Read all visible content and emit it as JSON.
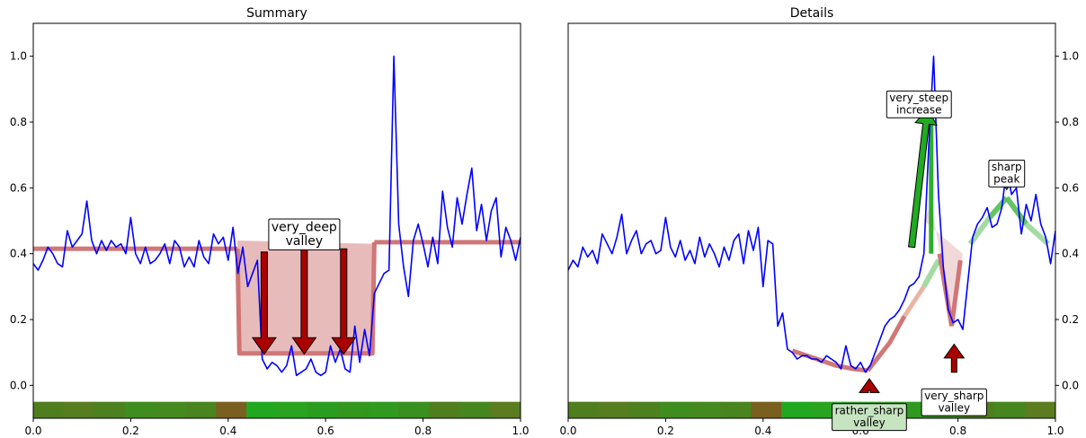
{
  "chart_data": [
    {
      "type": "line",
      "title": "Summary",
      "xlabel": "",
      "ylabel": "",
      "xlim": [
        0,
        1
      ],
      "ylim": [
        -0.1,
        1.1
      ],
      "xticks": [
        "0.0",
        "0.2",
        "0.4",
        "0.6",
        "0.8",
        "1.0"
      ],
      "yticks": [
        "0.0",
        "0.2",
        "0.4",
        "0.6",
        "0.8",
        "1.0"
      ],
      "grid": false,
      "series": [
        {
          "color": "#0000ff",
          "x": [
            0.0,
            0.01,
            0.02,
            0.03,
            0.04,
            0.05,
            0.06,
            0.07,
            0.08,
            0.09,
            0.1,
            0.11,
            0.12,
            0.13,
            0.14,
            0.15,
            0.16,
            0.17,
            0.18,
            0.19,
            0.2,
            0.21,
            0.22,
            0.23,
            0.24,
            0.25,
            0.26,
            0.27,
            0.28,
            0.29,
            0.3,
            0.31,
            0.32,
            0.33,
            0.34,
            0.35,
            0.36,
            0.37,
            0.38,
            0.39,
            0.4,
            0.41,
            0.42,
            0.43,
            0.44,
            0.45,
            0.46,
            0.47,
            0.48,
            0.49,
            0.5,
            0.51,
            0.52,
            0.53,
            0.54,
            0.55,
            0.56,
            0.57,
            0.58,
            0.59,
            0.6,
            0.61,
            0.62,
            0.63,
            0.64,
            0.65,
            0.66,
            0.67,
            0.68,
            0.69,
            0.7,
            0.71,
            0.72,
            0.73,
            0.74,
            0.75,
            0.76,
            0.77,
            0.78,
            0.79,
            0.8,
            0.81,
            0.82,
            0.83,
            0.84,
            0.85,
            0.86,
            0.87,
            0.88,
            0.89,
            0.9,
            0.91,
            0.92,
            0.93,
            0.94,
            0.95,
            0.96,
            0.97,
            0.98,
            0.99,
            1.0
          ],
          "y": [
            0.37,
            0.35,
            0.38,
            0.42,
            0.4,
            0.37,
            0.36,
            0.47,
            0.42,
            0.44,
            0.46,
            0.56,
            0.44,
            0.4,
            0.44,
            0.41,
            0.44,
            0.42,
            0.43,
            0.4,
            0.51,
            0.4,
            0.37,
            0.42,
            0.37,
            0.38,
            0.4,
            0.43,
            0.37,
            0.44,
            0.42,
            0.36,
            0.39,
            0.36,
            0.44,
            0.39,
            0.37,
            0.46,
            0.43,
            0.45,
            0.38,
            0.48,
            0.34,
            0.42,
            0.3,
            0.34,
            0.38,
            0.08,
            0.05,
            0.07,
            0.06,
            0.04,
            0.06,
            0.12,
            0.03,
            0.04,
            0.05,
            0.08,
            0.04,
            0.03,
            0.04,
            0.12,
            0.07,
            0.11,
            0.05,
            0.04,
            0.18,
            0.07,
            0.17,
            0.09,
            0.28,
            0.31,
            0.34,
            0.35,
            1.0,
            0.49,
            0.36,
            0.27,
            0.44,
            0.49,
            0.43,
            0.36,
            0.45,
            0.37,
            0.59,
            0.48,
            0.42,
            0.57,
            0.49,
            0.58,
            0.66,
            0.47,
            0.55,
            0.44,
            0.53,
            0.57,
            0.39,
            0.48,
            0.44,
            0.38,
            0.45
          ]
        }
      ],
      "fills": [
        {
          "xs": [
            0.419,
            0.419,
            0.696,
            0.696
          ],
          "ys": [
            0.44,
            0.1,
            0.1,
            0.43
          ],
          "color": "#d27878"
        }
      ],
      "segments": [
        {
          "x": [
            0.0,
            0.419
          ],
          "y": [
            0.415,
            0.415
          ],
          "color": "#cd7070",
          "width": 5
        },
        {
          "x": [
            0.419,
            0.423,
            0.696,
            0.7
          ],
          "y": [
            0.415,
            0.097,
            0.097,
            0.435
          ],
          "color": "#cd7070",
          "width": 5
        },
        {
          "x": [
            0.7,
            1.0
          ],
          "y": [
            0.435,
            0.435
          ],
          "color": "#cd7070",
          "width": 5
        }
      ],
      "arrows": [
        {
          "x0": 0.474,
          "y0": 0.405,
          "x1": 0.474,
          "y1": 0.095,
          "color": "#aa0000",
          "width": 7,
          "head": 13
        },
        {
          "x0": 0.556,
          "y0": 0.415,
          "x1": 0.556,
          "y1": 0.095,
          "color": "#aa0000",
          "width": 7,
          "head": 13
        },
        {
          "x0": 0.637,
          "y0": 0.415,
          "x1": 0.637,
          "y1": 0.095,
          "color": "#aa0000",
          "width": 7,
          "head": 13
        }
      ],
      "annotations": [
        {
          "lines": [
            "very_deep",
            "valley"
          ],
          "x": 0.556,
          "y": 0.46,
          "size": 14,
          "bg": "#ffffff"
        }
      ],
      "bottom_band": {
        "y0": -0.1,
        "y1": -0.05,
        "edges": [
          0.0,
          0.0625,
          0.125,
          0.1875,
          0.25,
          0.3125,
          0.375,
          0.4375,
          0.5,
          0.5625,
          0.625,
          0.6875,
          0.75,
          0.8125,
          0.875,
          0.9375,
          1.0
        ],
        "colors": [
          "#4f7e1e",
          "#567d1f",
          "#4d801e",
          "#3f8c1f",
          "#448a1f",
          "#4a841e",
          "#7a601f",
          "#22a721",
          "#2aa321",
          "#2a9d20",
          "#32961f",
          "#2f9920",
          "#3a901e",
          "#4f7e1e",
          "#46861f",
          "#5b7c1f"
        ]
      }
    },
    {
      "type": "line",
      "title": "Details",
      "xlabel": "",
      "ylabel": "",
      "xlim": [
        0,
        1
      ],
      "ylim": [
        -0.1,
        1.1
      ],
      "xticks": [
        "0.0",
        "0.2",
        "0.4",
        "0.6",
        "0.8",
        "1.0"
      ],
      "yticks": [
        "0.0",
        "0.2",
        "0.4",
        "0.6",
        "0.8",
        "1.0"
      ],
      "y_axis_side": "right",
      "grid": false,
      "series": [
        {
          "color": "#0000ff",
          "x": [
            0.0,
            0.01,
            0.02,
            0.03,
            0.04,
            0.05,
            0.06,
            0.07,
            0.08,
            0.09,
            0.1,
            0.11,
            0.12,
            0.13,
            0.14,
            0.15,
            0.16,
            0.17,
            0.18,
            0.19,
            0.2,
            0.21,
            0.22,
            0.23,
            0.24,
            0.25,
            0.26,
            0.27,
            0.28,
            0.29,
            0.3,
            0.31,
            0.32,
            0.33,
            0.34,
            0.35,
            0.36,
            0.37,
            0.38,
            0.39,
            0.4,
            0.41,
            0.42,
            0.43,
            0.44,
            0.45,
            0.46,
            0.47,
            0.48,
            0.49,
            0.5,
            0.51,
            0.52,
            0.53,
            0.54,
            0.55,
            0.56,
            0.57,
            0.58,
            0.59,
            0.6,
            0.61,
            0.62,
            0.63,
            0.64,
            0.65,
            0.66,
            0.67,
            0.68,
            0.69,
            0.7,
            0.71,
            0.72,
            0.73,
            0.74,
            0.75,
            0.76,
            0.77,
            0.78,
            0.79,
            0.8,
            0.81,
            0.82,
            0.83,
            0.84,
            0.85,
            0.86,
            0.87,
            0.88,
            0.89,
            0.9,
            0.91,
            0.92,
            0.93,
            0.94,
            0.95,
            0.96,
            0.97,
            0.98,
            0.99,
            1.0
          ],
          "y": [
            0.35,
            0.38,
            0.36,
            0.42,
            0.39,
            0.41,
            0.37,
            0.46,
            0.43,
            0.4,
            0.45,
            0.52,
            0.4,
            0.44,
            0.47,
            0.4,
            0.43,
            0.44,
            0.4,
            0.41,
            0.51,
            0.42,
            0.39,
            0.44,
            0.38,
            0.41,
            0.37,
            0.45,
            0.39,
            0.43,
            0.4,
            0.36,
            0.42,
            0.38,
            0.44,
            0.46,
            0.37,
            0.47,
            0.41,
            0.48,
            0.3,
            0.44,
            0.43,
            0.18,
            0.22,
            0.11,
            0.1,
            0.08,
            0.09,
            0.09,
            0.08,
            0.08,
            0.07,
            0.09,
            0.08,
            0.07,
            0.05,
            0.12,
            0.06,
            0.05,
            0.07,
            0.04,
            0.06,
            0.1,
            0.14,
            0.18,
            0.2,
            0.21,
            0.23,
            0.26,
            0.3,
            0.31,
            0.33,
            0.4,
            0.73,
            1.0,
            0.58,
            0.36,
            0.23,
            0.19,
            0.2,
            0.17,
            0.31,
            0.45,
            0.49,
            0.51,
            0.54,
            0.48,
            0.49,
            0.54,
            0.66,
            0.58,
            0.6,
            0.46,
            0.55,
            0.5,
            0.58,
            0.49,
            0.45,
            0.37,
            0.47
          ]
        }
      ],
      "fills": [
        {
          "xs": [
            0.73,
            0.745,
            0.787,
            0.81
          ],
          "ys": [
            0.5,
            0.55,
            0.2,
            0.4
          ],
          "color": "#e6b4b4"
        }
      ],
      "segments": [
        {
          "x": [
            0.46,
            0.5,
            0.55,
            0.585,
            0.615
          ],
          "y": [
            0.105,
            0.085,
            0.06,
            0.05,
            0.045
          ],
          "color": "#cd7070",
          "width": 5
        },
        {
          "x": [
            0.615,
            0.66,
            0.69
          ],
          "y": [
            0.045,
            0.13,
            0.21
          ],
          "color": "#cd7070",
          "width": 5
        },
        {
          "x": [
            0.69,
            0.73
          ],
          "y": [
            0.21,
            0.3
          ],
          "color": "#e9b0a0",
          "width": 5
        },
        {
          "x": [
            0.73,
            0.76
          ],
          "y": [
            0.3,
            0.38
          ],
          "color": "#9ed99e",
          "width": 6
        },
        {
          "x": [
            0.745,
            0.745
          ],
          "y": [
            0.4,
            0.82
          ],
          "color": "#22aa22",
          "width": 5
        },
        {
          "x": [
            0.762,
            0.787
          ],
          "y": [
            0.4,
            0.18
          ],
          "color": "#cd7070",
          "width": 5
        },
        {
          "x": [
            0.787,
            0.805
          ],
          "y": [
            0.18,
            0.38
          ],
          "color": "#cd7070",
          "width": 5
        },
        {
          "x": [
            0.825,
            0.865
          ],
          "y": [
            0.43,
            0.51
          ],
          "color": "#9ed99e",
          "width": 6
        },
        {
          "x": [
            0.865,
            0.9
          ],
          "y": [
            0.51,
            0.57
          ],
          "color": "#5cc05c",
          "width": 6
        },
        {
          "x": [
            0.9,
            0.94
          ],
          "y": [
            0.57,
            0.49
          ],
          "color": "#5cc05c",
          "width": 6
        },
        {
          "x": [
            0.94,
            0.985
          ],
          "y": [
            0.49,
            0.43
          ],
          "color": "#9ed99e",
          "width": 6
        }
      ],
      "arrows": [
        {
          "x0": 0.705,
          "y0": 0.42,
          "x1": 0.738,
          "y1": 0.84,
          "color": "#22aa22",
          "width": 7,
          "head": 12
        },
        {
          "x0": 0.792,
          "y0": 0.04,
          "x1": 0.792,
          "y1": 0.125,
          "color": "#aa0000",
          "width": 6,
          "head": 11
        },
        {
          "x0": 0.618,
          "y0": -0.015,
          "x1": 0.618,
          "y1": 0.02,
          "color": "#aa0000",
          "width": 2,
          "head": 11
        },
        {
          "x0": 0.9,
          "y0": 0.645,
          "x1": 0.9,
          "y1": 0.595,
          "color": "#22aa22",
          "width": 2,
          "head": 11
        }
      ],
      "annotations": [
        {
          "lines": [
            "very_steep",
            "increase"
          ],
          "x": 0.72,
          "y": 0.855,
          "size": 12,
          "bg": "#ffffff"
        },
        {
          "lines": [
            "sharp",
            "peak"
          ],
          "x": 0.9,
          "y": 0.645,
          "size": 12,
          "bg": "#ffffff"
        },
        {
          "lines": [
            "very_sharp",
            "valley"
          ],
          "x": 0.792,
          "y": -0.05,
          "size": 12,
          "bg": "#ffffff"
        },
        {
          "lines": [
            "rather_sharp",
            "valley"
          ],
          "x": 0.618,
          "y": -0.095,
          "size": 12,
          "bg": "#c6e4c0"
        }
      ],
      "bottom_band": {
        "y0": -0.1,
        "y1": -0.05,
        "edges": [
          0.0,
          0.0625,
          0.125,
          0.1875,
          0.25,
          0.3125,
          0.375,
          0.4375,
          0.5,
          0.5625,
          0.625,
          0.6875,
          0.75,
          0.8125,
          0.875,
          0.9375,
          1.0
        ],
        "colors": [
          "#4f7e1e",
          "#567d1f",
          "#4d801e",
          "#3f8c1f",
          "#448a1f",
          "#4a841e",
          "#7a601f",
          "#22a721",
          "#2aa321",
          "#2a9d20",
          "#32961f",
          "#2f9920",
          "#3a901e",
          "#4f7e1e",
          "#46861f",
          "#5b7c1f"
        ]
      }
    }
  ]
}
